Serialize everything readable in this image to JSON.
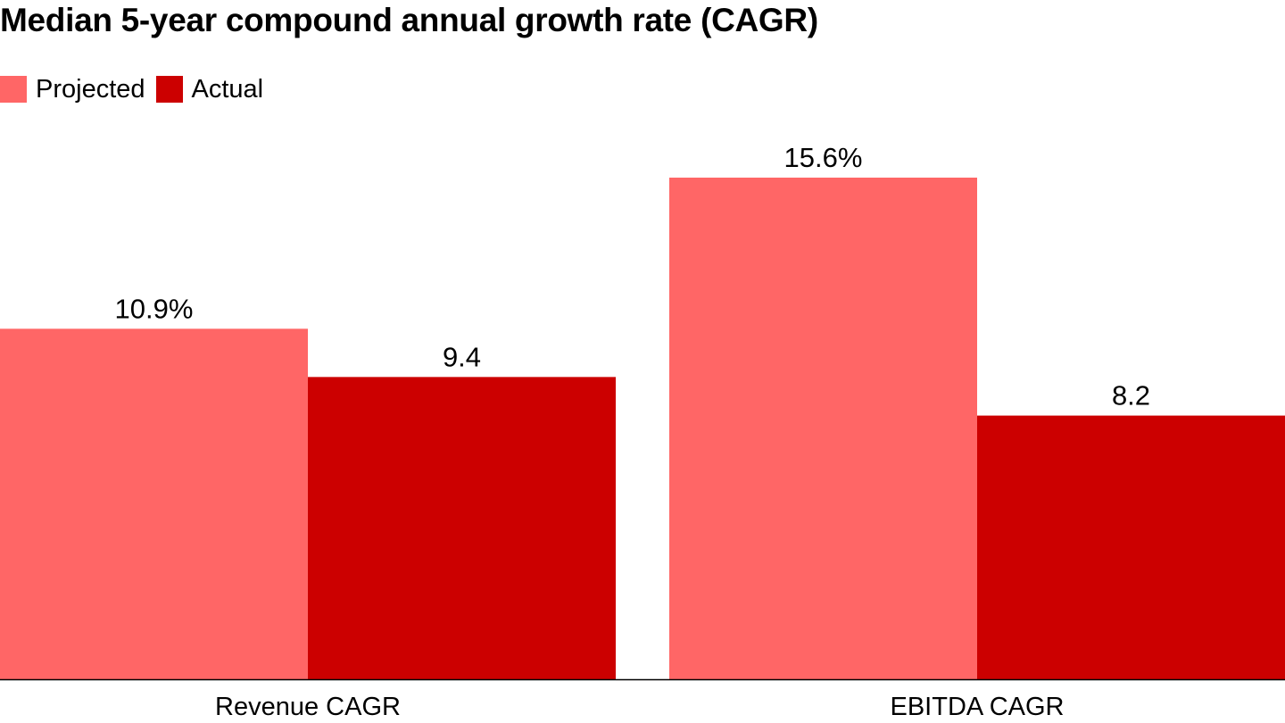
{
  "chart_data": {
    "type": "bar",
    "title": "Median 5-year compound annual growth rate (CAGR)",
    "categories": [
      "Revenue CAGR",
      "EBITDA CAGR"
    ],
    "series": [
      {
        "name": "Projected",
        "values": [
          10.9,
          15.6
        ],
        "labels": [
          "10.9%",
          "15.6%"
        ],
        "color": "#ff6666"
      },
      {
        "name": "Actual",
        "values": [
          9.4,
          8.2
        ],
        "labels": [
          "9.4",
          "8.2"
        ],
        "color": "#cc0000"
      }
    ],
    "legend_position": "top-left",
    "grid": false,
    "ylim": [
      0,
      15.6
    ],
    "axis_color": "#000000"
  }
}
